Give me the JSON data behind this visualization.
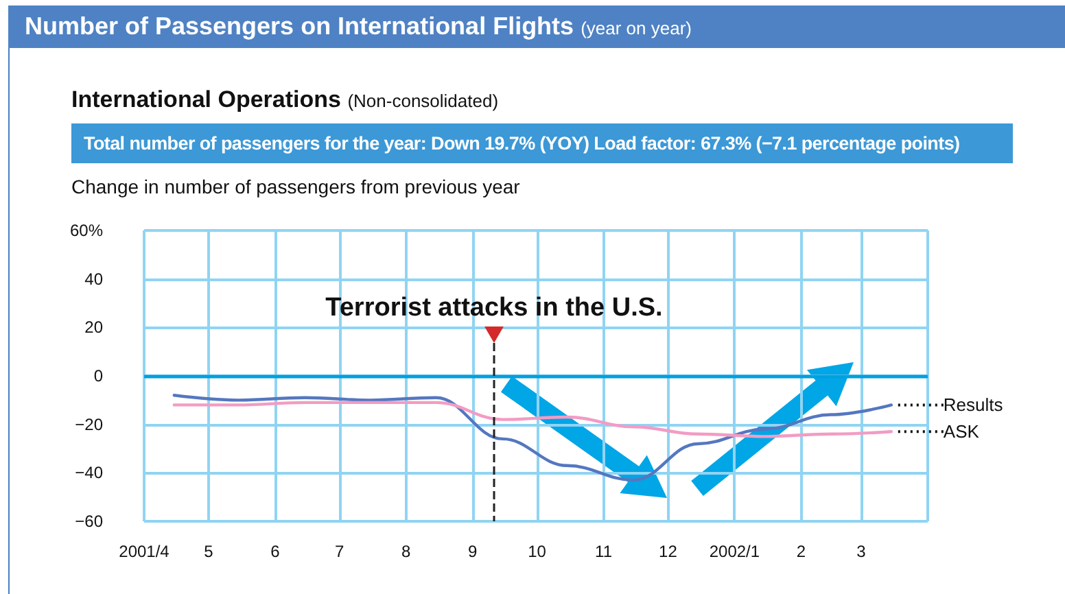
{
  "chart_data": {
    "type": "line",
    "title": "Number of Passengers on International Flights (year on year)",
    "subtitle": "International Operations (Non-consolidated)",
    "annotations": [
      "Total number of passengers for the year: Down 19.7% (YOY)  Load factor: 67.3% (−7.1 percentage points)"
    ],
    "ylabel": "Change in number of passengers from previous year",
    "x": [
      "2001-04-15",
      "2001-05-15",
      "2001-06-15",
      "2001-07-15",
      "2001-08-15",
      "2001-09-15",
      "2001-10-15",
      "2001-11-15",
      "2001-12-15",
      "2002-01-15",
      "2002-02-15",
      "2002-03-15"
    ],
    "series": [
      {
        "name": "Results",
        "color": "#5577c0",
        "values": [
          -8,
          -10,
          -9,
          -10,
          -9,
          -26,
          -37,
          -43,
          -28,
          -22,
          -16,
          -12
        ]
      },
      {
        "name": "ASK",
        "color": "#f29cc4",
        "values": [
          -12,
          -12,
          -11,
          -11,
          -11,
          -18,
          -17,
          -21,
          -24,
          -25,
          -24,
          -23
        ]
      }
    ],
    "xlim": [
      "2001-04",
      "2002-04"
    ],
    "xticks": [
      {
        "value": "2001-04",
        "label": "2001/4"
      },
      {
        "value": "2001-05",
        "label": "5"
      },
      {
        "value": "2001-06",
        "label": "6"
      },
      {
        "value": "2001-07",
        "label": "7"
      },
      {
        "value": "2001-08",
        "label": "8"
      },
      {
        "value": "2001-09",
        "label": "9"
      },
      {
        "value": "2001-10",
        "label": "10"
      },
      {
        "value": "2001-11",
        "label": "11"
      },
      {
        "value": "2001-12",
        "label": "12"
      },
      {
        "value": "2002-01",
        "label": "2002/1"
      },
      {
        "value": "2002-02",
        "label": "2"
      },
      {
        "value": "2002-03",
        "label": "3"
      },
      {
        "value": "2002-04",
        "label": null
      }
    ],
    "ylim": [
      -60,
      60
    ],
    "yticks": [
      {
        "value": -60,
        "label": "−60"
      },
      {
        "value": -40,
        "label": "−40"
      },
      {
        "value": -20,
        "label": "−20"
      },
      0,
      20,
      40,
      {
        "value": 60,
        "label": "60%"
      }
    ],
    "grid": true,
    "marker": "none",
    "line_style": "solid",
    "ref_lines": [
      {
        "axis": "y",
        "value": 0,
        "color": "#00a0e0",
        "line_style": "solid"
      },
      {
        "axis": "x",
        "value": "2001-09-11",
        "label": "Terrorist attacks in the U.S.",
        "color": "#222222",
        "line_style": "dashed"
      }
    ]
  }
}
